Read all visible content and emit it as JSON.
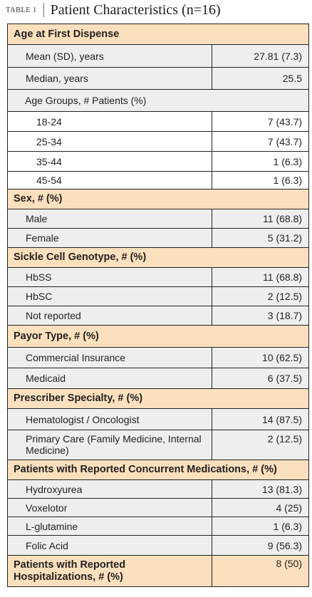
{
  "caption": {
    "number": "TABLE 1",
    "title": "Patient Characteristics (n=16)"
  },
  "colors": {
    "section_bg": "#fbe0bd",
    "row_bg": "#eeeeee",
    "sub_bg": "#ffffff",
    "border": "#222222"
  },
  "age": {
    "header": "Age at First Dispense",
    "mean_label": "Mean (SD), years",
    "mean_value": "27.81 (7.3)",
    "median_label": "Median, years",
    "median_value": "25.5",
    "groups_label": "Age Groups, # Patients (%)",
    "groups": [
      {
        "label": "18-24",
        "value": "7 (43.7)"
      },
      {
        "label": "25-34",
        "value": "7 (43.7)"
      },
      {
        "label": "35-44",
        "value": "1 (6.3)"
      },
      {
        "label": "45-54",
        "value": "1 (6.3)"
      }
    ]
  },
  "sex": {
    "header": "Sex, # (%)",
    "rows": [
      {
        "label": "Male",
        "value": "11 (68.8)"
      },
      {
        "label": "Female",
        "value": "5 (31.2)"
      }
    ]
  },
  "genotype": {
    "header": "Sickle Cell Genotype, # (%)",
    "rows": [
      {
        "label": "HbSS",
        "value": "11 (68.8)"
      },
      {
        "label": "HbSC",
        "value": "2 (12.5)"
      },
      {
        "label": "Not reported",
        "value": "3 (18.7)"
      }
    ]
  },
  "payor": {
    "header": "Payor Type, # (%)",
    "rows": [
      {
        "label": "Commercial Insurance",
        "value": "10 (62.5)"
      },
      {
        "label": "Medicaid",
        "value": "6  (37.5)"
      }
    ]
  },
  "prescriber": {
    "header": "Prescriber Specialty, # (%)",
    "rows": [
      {
        "label": "Hematologist / Oncologist",
        "value": "14 (87.5)"
      },
      {
        "label": "Primary Care (Family Medicine, Internal Medicine)",
        "value": "2 (12.5)"
      }
    ]
  },
  "medications": {
    "header": "Patients with Reported Concurrent Medications, # (%)",
    "rows": [
      {
        "label": "Hydroxyurea",
        "value": "13 (81.3)"
      },
      {
        "label": "Voxelotor",
        "value": "4 (25)"
      },
      {
        "label": "L-glutamine",
        "value": "1 (6.3)"
      },
      {
        "label": "Folic Acid",
        "value": "9 (56.3)"
      }
    ]
  },
  "hospitalizations": {
    "label": "Patients with Reported Hospitalizations, # (%)",
    "value": "8 (50)"
  }
}
